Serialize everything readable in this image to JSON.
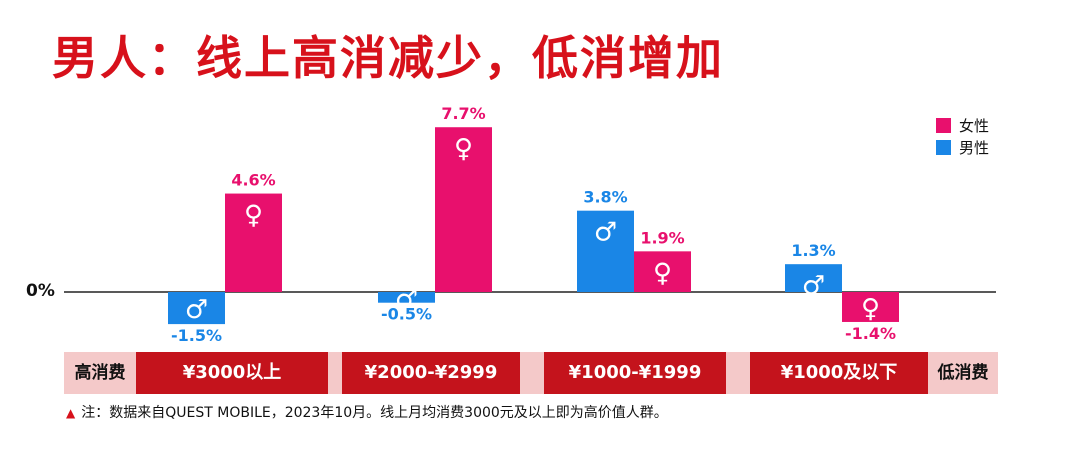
{
  "title": "男人：线上高消减少，低消增加",
  "zero_label": "0%",
  "band": {
    "left_label": "高消费",
    "right_label": "低消费"
  },
  "footnote": {
    "icon": "triangle-icon",
    "text": "注：数据来自QUEST MOBILE，2023年10月。线上月均消费3000元及以上即为高价值人群。"
  },
  "colors": {
    "female": "#e8106d",
    "male": "#1a86e6",
    "title": "#d7111b",
    "band_dark": "#c4131c",
    "band_light": "#f4c9c9"
  },
  "chart_data": {
    "type": "bar",
    "categories": [
      "¥3000以上",
      "¥2000-¥2999",
      "¥1000-¥1999",
      "¥1000及以下"
    ],
    "series": [
      {
        "name": "男性",
        "symbol": "♂",
        "values": [
          -1.5,
          -0.5,
          3.8,
          1.3
        ]
      },
      {
        "name": "女性",
        "symbol": "♀",
        "values": [
          4.6,
          7.7,
          1.9,
          -1.4
        ]
      }
    ],
    "data_labels": [
      [
        "-1.5%",
        "-0.5%",
        "3.8%",
        "1.3%"
      ],
      [
        "4.6%",
        "7.7%",
        "1.9%",
        "-1.4%"
      ]
    ],
    "legend": [
      "女性",
      "男性"
    ],
    "legend_position": "top-right",
    "ylim": [
      -2,
      8
    ],
    "grid": false
  }
}
